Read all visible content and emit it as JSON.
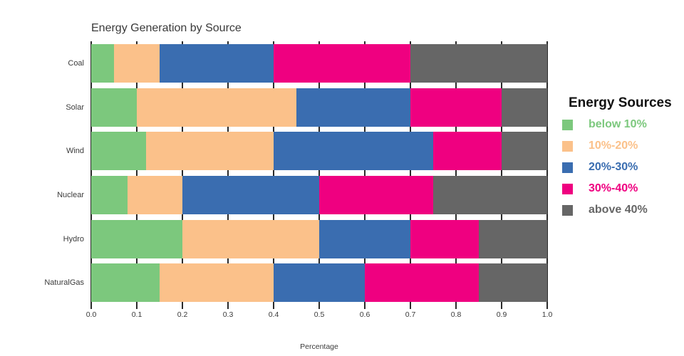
{
  "title": "Energy Generation by Source",
  "xlabel": "Percentage",
  "legend": {
    "title": "Energy Sources",
    "items": [
      {
        "label": "below 10%",
        "color": "#7CC87D"
      },
      {
        "label": "10%-20%",
        "color": "#FBC18A"
      },
      {
        "label": "20%-30%",
        "color": "#3A6DB0"
      },
      {
        "label": "30%-40%",
        "color": "#EF0080"
      },
      {
        "label": "above 40%",
        "color": "#666666"
      }
    ]
  },
  "chart_data": {
    "type": "bar",
    "orientation": "horizontal-stacked",
    "title": "Energy Generation by Source",
    "xlabel": "Percentage",
    "ylabel": "",
    "xlim": [
      0,
      1
    ],
    "xticks": [
      "0.0",
      "0.1",
      "0.2",
      "0.3",
      "0.4",
      "0.5",
      "0.6",
      "0.7",
      "0.8",
      "0.9",
      "1.0"
    ],
    "categories": [
      "Coal",
      "Solar",
      "Wind",
      "Nuclear",
      "Hydro",
      "NaturalGas"
    ],
    "series": [
      {
        "name": "below 10%",
        "color": "#7CC87D",
        "values": [
          0.05,
          0.1,
          0.12,
          0.08,
          0.2,
          0.15
        ]
      },
      {
        "name": "10%-20%",
        "color": "#FBC18A",
        "values": [
          0.1,
          0.35,
          0.28,
          0.12,
          0.3,
          0.25
        ]
      },
      {
        "name": "20%-30%",
        "color": "#3A6DB0",
        "values": [
          0.25,
          0.25,
          0.35,
          0.3,
          0.2,
          0.2
        ]
      },
      {
        "name": "30%-40%",
        "color": "#EF0080",
        "values": [
          0.3,
          0.2,
          0.15,
          0.25,
          0.15,
          0.25
        ]
      },
      {
        "name": "above 40%",
        "color": "#666666",
        "values": [
          0.3,
          0.1,
          0.1,
          0.25,
          0.15,
          0.15
        ]
      }
    ],
    "legend_title": "Energy Sources",
    "legend_position": "right",
    "grid": "vertical tick lines at 0.1 intervals, visible in gaps between bars"
  }
}
